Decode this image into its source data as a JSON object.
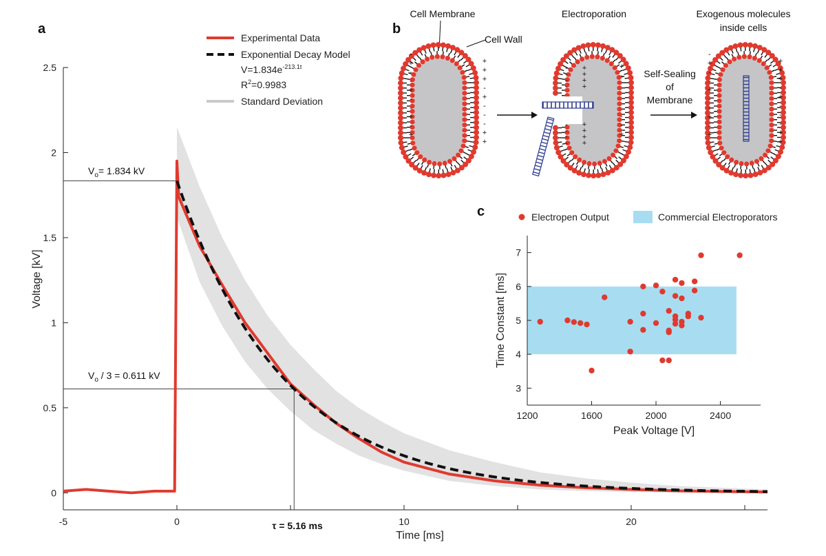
{
  "panels": {
    "a": "a",
    "b": "b",
    "c": "c"
  },
  "chart_data": [
    {
      "panel": "a",
      "type": "line",
      "xlabel": "Time [ms]",
      "ylabel": "Voltage [kV]",
      "xlim": [
        -5,
        26
      ],
      "ylim": [
        -0.1,
        2.5
      ],
      "xticks": [
        -5,
        0,
        10,
        20
      ],
      "xtick_labels": [
        "-5",
        "0",
        "10",
        "20"
      ],
      "yticks": [
        0,
        0.5,
        1,
        1.5,
        2,
        2.5
      ],
      "ytick_labels": [
        "0",
        "0.5",
        "1",
        "1.5",
        "2",
        "2.5"
      ],
      "grid": false,
      "legend_position": "top-center",
      "legend": {
        "experimental": "Experimental Data",
        "model": "Exponential Decay Model",
        "equation_base": "V=1.834e",
        "equation_exp": "-213.1t",
        "r2_base": "R",
        "r2_sup": "2",
        "r2_value": "=0.9983",
        "std": "Standard Deviation"
      },
      "annotations": {
        "v0_label_pre": "V",
        "v0_label_sub": "o",
        "v0_label_post": "= 1.834 kV",
        "v0_value": 1.834,
        "v3_label_pre": "V",
        "v3_label_sub": "o",
        "v3_label_post": " / 3 = 0.611 kV",
        "v3_value": 0.611,
        "tau_label": "τ = 5.16 ms",
        "tau_value": 5.16
      },
      "series": [
        {
          "name": "Experimental Data",
          "color": "#e03a2f",
          "style": "solid",
          "points": [
            [
              -5,
              0.01
            ],
            [
              -4,
              0.02
            ],
            [
              -3,
              0.01
            ],
            [
              -2,
              0.0
            ],
            [
              -1,
              0.01
            ],
            [
              -0.1,
              0.01
            ],
            [
              0,
              1.95
            ],
            [
              0.08,
              1.74
            ],
            [
              1,
              1.45
            ],
            [
              2,
              1.22
            ],
            [
              3,
              1.0
            ],
            [
              4,
              0.82
            ],
            [
              5,
              0.64
            ],
            [
              6,
              0.52
            ],
            [
              7,
              0.41
            ],
            [
              8,
              0.32
            ],
            [
              9,
              0.24
            ],
            [
              10,
              0.18
            ],
            [
              12,
              0.11
            ],
            [
              14,
              0.07
            ],
            [
              16,
              0.045
            ],
            [
              18,
              0.03
            ],
            [
              20,
              0.02
            ],
            [
              22,
              0.012
            ],
            [
              24,
              0.008
            ],
            [
              26,
              0.005
            ]
          ]
        },
        {
          "name": "Exponential Decay Model",
          "color": "#111111",
          "style": "dashed",
          "V0": 1.834,
          "rate_per_ms": 0.2131,
          "x_range": [
            0,
            26
          ]
        },
        {
          "name": "Standard Deviation",
          "color": "#e2e2e2",
          "style": "band",
          "upper": [
            [
              0,
              2.15
            ],
            [
              1,
              1.8
            ],
            [
              2,
              1.5
            ],
            [
              3,
              1.25
            ],
            [
              4,
              1.04
            ],
            [
              5,
              0.87
            ],
            [
              6,
              0.73
            ],
            [
              7,
              0.6
            ],
            [
              8,
              0.5
            ],
            [
              9,
              0.42
            ],
            [
              10,
              0.35
            ],
            [
              12,
              0.25
            ],
            [
              14,
              0.18
            ],
            [
              16,
              0.12
            ],
            [
              18,
              0.085
            ],
            [
              20,
              0.06
            ],
            [
              22,
              0.04
            ],
            [
              24,
              0.03
            ],
            [
              26,
              0.02
            ]
          ],
          "lower": [
            [
              0,
              1.62
            ],
            [
              1,
              1.24
            ],
            [
              2,
              0.98
            ],
            [
              3,
              0.77
            ],
            [
              4,
              0.61
            ],
            [
              5,
              0.48
            ],
            [
              6,
              0.37
            ],
            [
              7,
              0.29
            ],
            [
              8,
              0.22
            ],
            [
              9,
              0.17
            ],
            [
              10,
              0.13
            ],
            [
              12,
              0.07
            ],
            [
              14,
              0.04
            ],
            [
              16,
              0.02
            ],
            [
              18,
              0.01
            ],
            [
              20,
              0.005
            ],
            [
              22,
              0.0
            ],
            [
              24,
              0.0
            ],
            [
              26,
              0.0
            ]
          ]
        }
      ]
    },
    {
      "panel": "c",
      "type": "scatter",
      "xlabel": "Peak Voltage [V]",
      "ylabel": "Time Constant [ms]",
      "xlim": [
        1200,
        2650
      ],
      "ylim": [
        2.5,
        7.5
      ],
      "xticks": [
        1200,
        1600,
        2000,
        2400
      ],
      "yticks": [
        3,
        4,
        5,
        6,
        7
      ],
      "grid": false,
      "legend_position": "top",
      "series": [
        {
          "name": "Electropen Output",
          "color": "#e03a2f",
          "points": [
            [
              1280,
              4.96
            ],
            [
              1450,
              5.0
            ],
            [
              1490,
              4.95
            ],
            [
              1530,
              4.92
            ],
            [
              1570,
              4.88
            ],
            [
              1600,
              3.52
            ],
            [
              1680,
              5.68
            ],
            [
              1840,
              4.96
            ],
            [
              1840,
              4.08
            ],
            [
              1920,
              6.0
            ],
            [
              1920,
              5.2
            ],
            [
              1920,
              4.72
            ],
            [
              2000,
              6.03
            ],
            [
              2000,
              4.92
            ],
            [
              2040,
              5.85
            ],
            [
              2040,
              3.82
            ],
            [
              2080,
              5.28
            ],
            [
              2080,
              4.7
            ],
            [
              2080,
              4.65
            ],
            [
              2080,
              3.82
            ],
            [
              2120,
              6.2
            ],
            [
              2120,
              5.72
            ],
            [
              2120,
              5.12
            ],
            [
              2120,
              5.02
            ],
            [
              2120,
              4.9
            ],
            [
              2160,
              6.1
            ],
            [
              2160,
              5.65
            ],
            [
              2160,
              4.96
            ],
            [
              2160,
              4.85
            ],
            [
              2200,
              5.2
            ],
            [
              2200,
              5.12
            ],
            [
              2240,
              6.15
            ],
            [
              2240,
              5.88
            ],
            [
              2280,
              6.92
            ],
            [
              2280,
              5.08
            ],
            [
              2520,
              6.92
            ]
          ]
        }
      ],
      "bands": [
        {
          "name": "Commercial Electroporators",
          "color": "#a8ddf1",
          "x_range": [
            1200,
            2500
          ],
          "y_range": [
            4,
            6
          ]
        }
      ]
    }
  ],
  "diagram": {
    "cell_membrane": "Cell Membrane",
    "cell_wall": "Cell Wall",
    "electroporation": "Electroporation",
    "exogenous_line1": "Exogenous molecules",
    "exogenous_line2": "inside cells",
    "self_sealing_line1": "Self-Sealing",
    "self_sealing_line2": "of",
    "self_sealing_line3": "Membrane",
    "colors": {
      "lipid_head": "#e03a2f",
      "cytoplasm": "#c5c5c7",
      "dna": "#2b3a8f"
    }
  }
}
